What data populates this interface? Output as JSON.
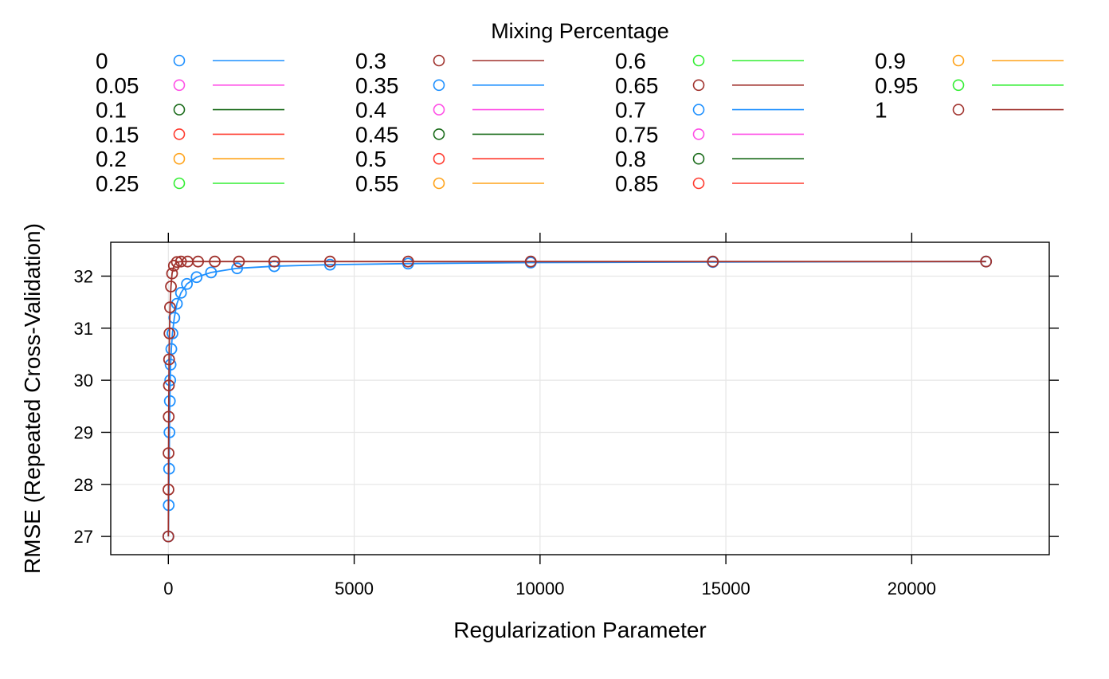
{
  "chart_data": {
    "type": "line",
    "legend": {
      "title": "Mixing Percentage",
      "entries": [
        {
          "label": "0",
          "color": "#1E90FF"
        },
        {
          "label": "0.05",
          "color": "#FF4FE6"
        },
        {
          "label": "0.1",
          "color": "#1A6B1A"
        },
        {
          "label": "0.15",
          "color": "#FF3B2F"
        },
        {
          "label": "0.2",
          "color": "#FFA31A"
        },
        {
          "label": "0.25",
          "color": "#33EE33"
        },
        {
          "label": "0.3",
          "color": "#A0322D"
        },
        {
          "label": "0.35",
          "color": "#1E90FF"
        },
        {
          "label": "0.4",
          "color": "#FF4FE6"
        },
        {
          "label": "0.45",
          "color": "#1A6B1A"
        },
        {
          "label": "0.5",
          "color": "#FF3B2F"
        },
        {
          "label": "0.55",
          "color": "#FFA31A"
        },
        {
          "label": "0.6",
          "color": "#33EE33"
        },
        {
          "label": "0.65",
          "color": "#A0322D"
        },
        {
          "label": "0.7",
          "color": "#1E90FF"
        },
        {
          "label": "0.75",
          "color": "#FF4FE6"
        },
        {
          "label": "0.8",
          "color": "#1A6B1A"
        },
        {
          "label": "0.85",
          "color": "#FF3B2F"
        },
        {
          "label": "0.9",
          "color": "#FFA31A"
        },
        {
          "label": "0.95",
          "color": "#33EE33"
        },
        {
          "label": "1",
          "color": "#A0322D"
        }
      ]
    },
    "xlabel": "Regularization Parameter",
    "ylabel": "RMSE (Repeated Cross-Validation)",
    "xlim": [
      -1550,
      23700
    ],
    "ylim": [
      26.65,
      32.65
    ],
    "x_ticks": [
      0,
      5000,
      10000,
      15000,
      20000
    ],
    "y_ticks": [
      27,
      28,
      29,
      30,
      31,
      32
    ],
    "grid": true,
    "series": [
      {
        "name": "0",
        "color": "#1E90FF",
        "x": [
          0,
          10,
          20,
          30,
          40,
          50,
          60,
          80,
          110,
          160,
          230,
          340,
          500,
          760,
          1150,
          1850,
          2850,
          4350,
          6450,
          9750,
          14650,
          22000
        ],
        "y": [
          27.0,
          27.6,
          28.3,
          29.0,
          29.6,
          30.0,
          30.3,
          30.6,
          30.9,
          31.2,
          31.47,
          31.68,
          31.85,
          31.98,
          32.07,
          32.15,
          32.19,
          32.22,
          32.24,
          32.26,
          32.27,
          32.28
        ]
      },
      {
        "name": "1",
        "color": "#A0322D",
        "x": [
          0,
          3,
          6,
          10,
          15,
          20,
          30,
          45,
          70,
          100,
          150,
          230,
          340,
          520,
          800,
          1250,
          1900,
          2850,
          4350,
          6450,
          9750,
          14650,
          22000
        ],
        "y": [
          27.0,
          27.9,
          28.6,
          29.3,
          29.9,
          30.4,
          30.9,
          31.4,
          31.8,
          32.05,
          32.2,
          32.27,
          32.28,
          32.28,
          32.28,
          32.28,
          32.28,
          32.28,
          32.28,
          32.28,
          32.28,
          32.28,
          32.28
        ]
      }
    ]
  }
}
